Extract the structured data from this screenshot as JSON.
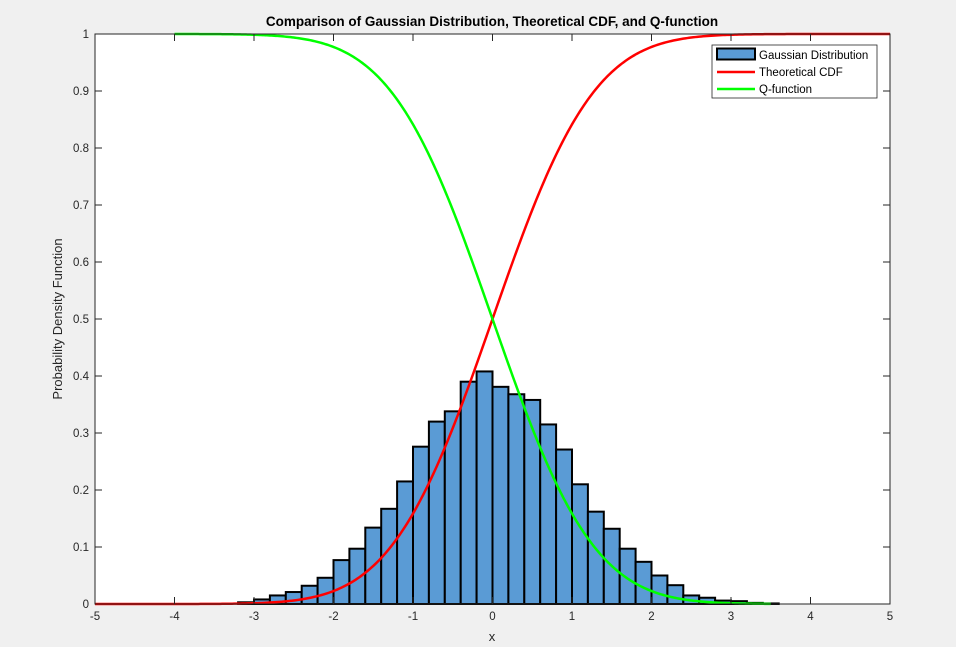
{
  "chart_data": {
    "type": "bar",
    "title": "Comparison of Gaussian Distribution, Theoretical CDF, and Q-function",
    "xlabel": "x",
    "ylabel": "Probability Density Function",
    "xlim": [
      -5,
      5
    ],
    "ylim": [
      0,
      1
    ],
    "xticks": [
      "-5",
      "-4",
      "-3",
      "-2",
      "-1",
      "0",
      "1",
      "2",
      "3",
      "4",
      "5"
    ],
    "yticks": [
      "0",
      "0.1",
      "0.2",
      "0.3",
      "0.4",
      "0.5",
      "0.6",
      "0.7",
      "0.8",
      "0.9",
      "1"
    ],
    "grid": false,
    "legend_position": "top-right",
    "histogram": {
      "name": "Gaussian Distribution",
      "color": "#5a9bd5",
      "edge_color": "#000000",
      "bin_edges": [
        -3.2,
        -3.0,
        -2.8,
        -2.6,
        -2.4,
        -2.2,
        -2.0,
        -1.8,
        -1.6,
        -1.4,
        -1.2,
        -1.0,
        -0.8,
        -0.6,
        -0.4,
        -0.2,
        0.0,
        0.2,
        0.4,
        0.6,
        0.8,
        1.0,
        1.2,
        1.4,
        1.6,
        1.8,
        2.0,
        2.2,
        2.4,
        2.6,
        2.8,
        3.0,
        3.2,
        3.4,
        3.6
      ],
      "values": [
        0.003,
        0.008,
        0.015,
        0.021,
        0.032,
        0.046,
        0.077,
        0.097,
        0.134,
        0.167,
        0.215,
        0.276,
        0.32,
        0.338,
        0.39,
        0.408,
        0.381,
        0.368,
        0.358,
        0.315,
        0.271,
        0.21,
        0.162,
        0.132,
        0.097,
        0.074,
        0.05,
        0.033,
        0.015,
        0.011,
        0.006,
        0.005,
        0.002,
        0.001
      ]
    },
    "series": [
      {
        "name": "Theoretical CDF",
        "color": "#ff0000",
        "function": "normal_cdf",
        "x_range": [
          -5,
          5
        ]
      },
      {
        "name": "Q-function",
        "color": "#00ff00",
        "function": "q_function",
        "x_range": [
          -4,
          3.5
        ]
      }
    ]
  }
}
